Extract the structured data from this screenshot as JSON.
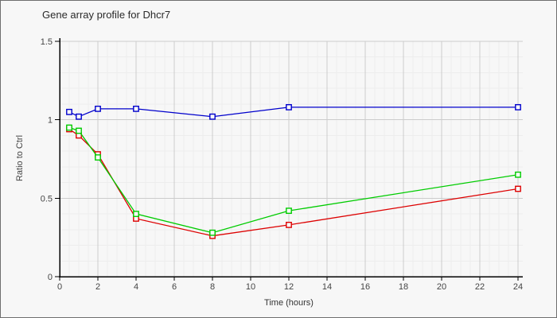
{
  "chart_data": {
    "type": "line",
    "title": "Gene array profile for Dhcr7",
    "xlabel": "Time (hours)",
    "ylabel": "Ratio to Ctrl",
    "x": [
      0.5,
      1,
      2,
      4,
      8,
      12,
      24
    ],
    "series": [
      {
        "name": "red",
        "color": "#dd0000",
        "values": [
          0.94,
          0.9,
          0.78,
          0.37,
          0.26,
          0.33,
          0.56
        ]
      },
      {
        "name": "green",
        "color": "#00cc00",
        "values": [
          0.95,
          0.93,
          0.76,
          0.4,
          0.28,
          0.42,
          0.65
        ]
      },
      {
        "name": "blue",
        "color": "#0000cc",
        "values": [
          1.05,
          1.02,
          1.07,
          1.07,
          1.02,
          1.08,
          1.08
        ]
      }
    ],
    "xlim": [
      0,
      24.25
    ],
    "ylim": [
      0,
      1.5
    ],
    "x_ticks": [
      0,
      2,
      4,
      6,
      8,
      10,
      12,
      14,
      16,
      18,
      20,
      22,
      24
    ],
    "y_ticks": [
      0,
      0.5,
      1,
      1.5
    ],
    "x_minor_step": 0.5,
    "y_minor_step": 0.1,
    "marker": "open-square",
    "grid": "on",
    "legend": "none"
  },
  "colors": {
    "background": "#f7f7f7",
    "border": "#6f6f6f",
    "axis": "#000000",
    "grid_major": "#cccccc",
    "grid_minor": "#ededed",
    "title_text": "#2a2a2a",
    "tick_text": "#444444",
    "marker_fill": "#fafafa"
  }
}
